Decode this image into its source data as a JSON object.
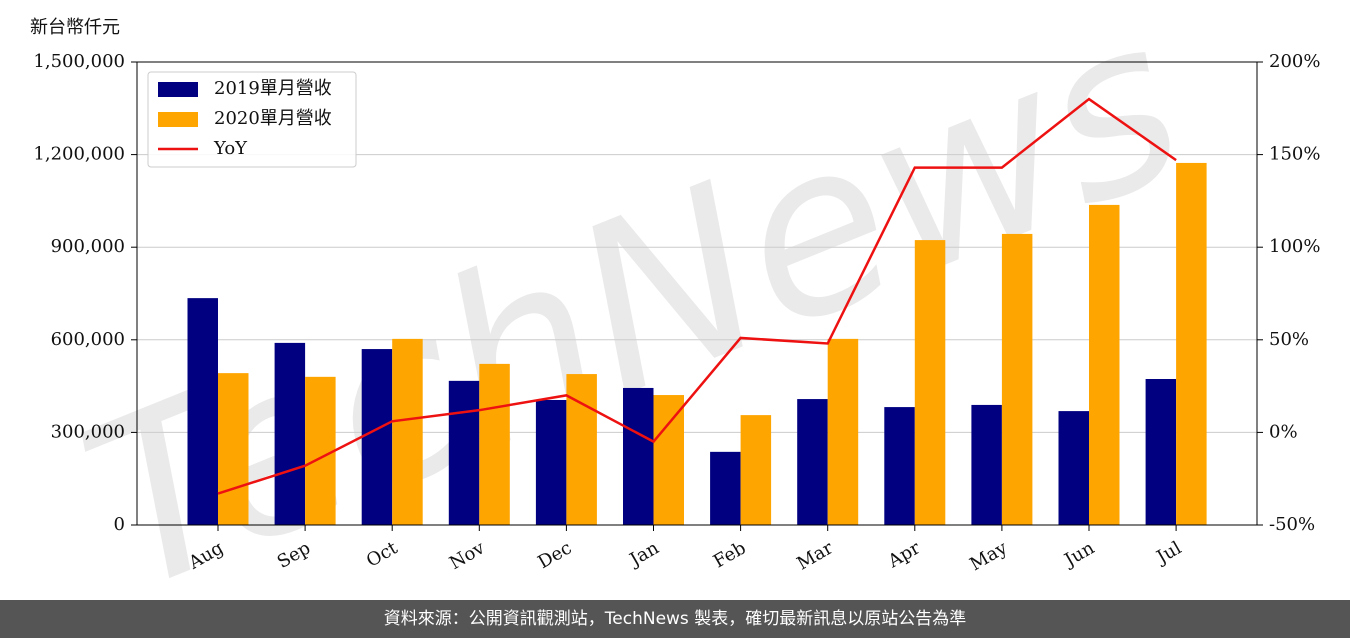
{
  "chart_data": {
    "type": "bar_line",
    "ylabel": "新台幣仟元",
    "categories": [
      "Aug",
      "Sep",
      "Oct",
      "Nov",
      "Dec",
      "Jan",
      "Feb",
      "Mar",
      "Apr",
      "May",
      "Jun",
      "Jul"
    ],
    "series": [
      {
        "name": "2019單月營收",
        "color": "#000080",
        "type": "bar",
        "values": [
          735000,
          590000,
          570000,
          467000,
          405000,
          444000,
          237000,
          408000,
          382000,
          389000,
          369000,
          473000
        ]
      },
      {
        "name": "2020單月營收",
        "color": "#ffa500",
        "type": "bar",
        "values": [
          492000,
          480000,
          603000,
          522000,
          489000,
          421000,
          356000,
          603000,
          923000,
          943000,
          1037000,
          1173000
        ]
      },
      {
        "name": "YoY",
        "color": "#ee1111",
        "type": "line",
        "axis": "y2",
        "values": [
          -33,
          -18,
          6,
          12,
          20,
          -5,
          51,
          48,
          143,
          143,
          180,
          147
        ]
      }
    ],
    "ylim": [
      0,
      1500000
    ],
    "yticks": [
      0,
      {
        "value": 300000,
        "label": "300,000"
      },
      {
        "value": 600000,
        "label": "600,000"
      },
      {
        "value": 900000,
        "label": "900,000"
      },
      {
        "value": 1200000,
        "label": "1,200,000"
      },
      {
        "value": 1500000,
        "label": "1,500,000"
      }
    ],
    "y2lim": [
      -50,
      200
    ],
    "y2ticks": [
      {
        "value": -50,
        "label": "-50%"
      },
      {
        "value": 0,
        "label": "0%"
      },
      {
        "value": 50,
        "label": "50%"
      },
      {
        "value": 100,
        "label": "100%"
      },
      {
        "value": 150,
        "label": "150%"
      },
      {
        "value": 200,
        "label": "200%"
      }
    ],
    "grid": true,
    "legend": "upper left",
    "watermark": "TechNews",
    "source": "資料來源：公開資訊觀測站，TechNews 製表，確切最新訊息以原站公告為準"
  }
}
